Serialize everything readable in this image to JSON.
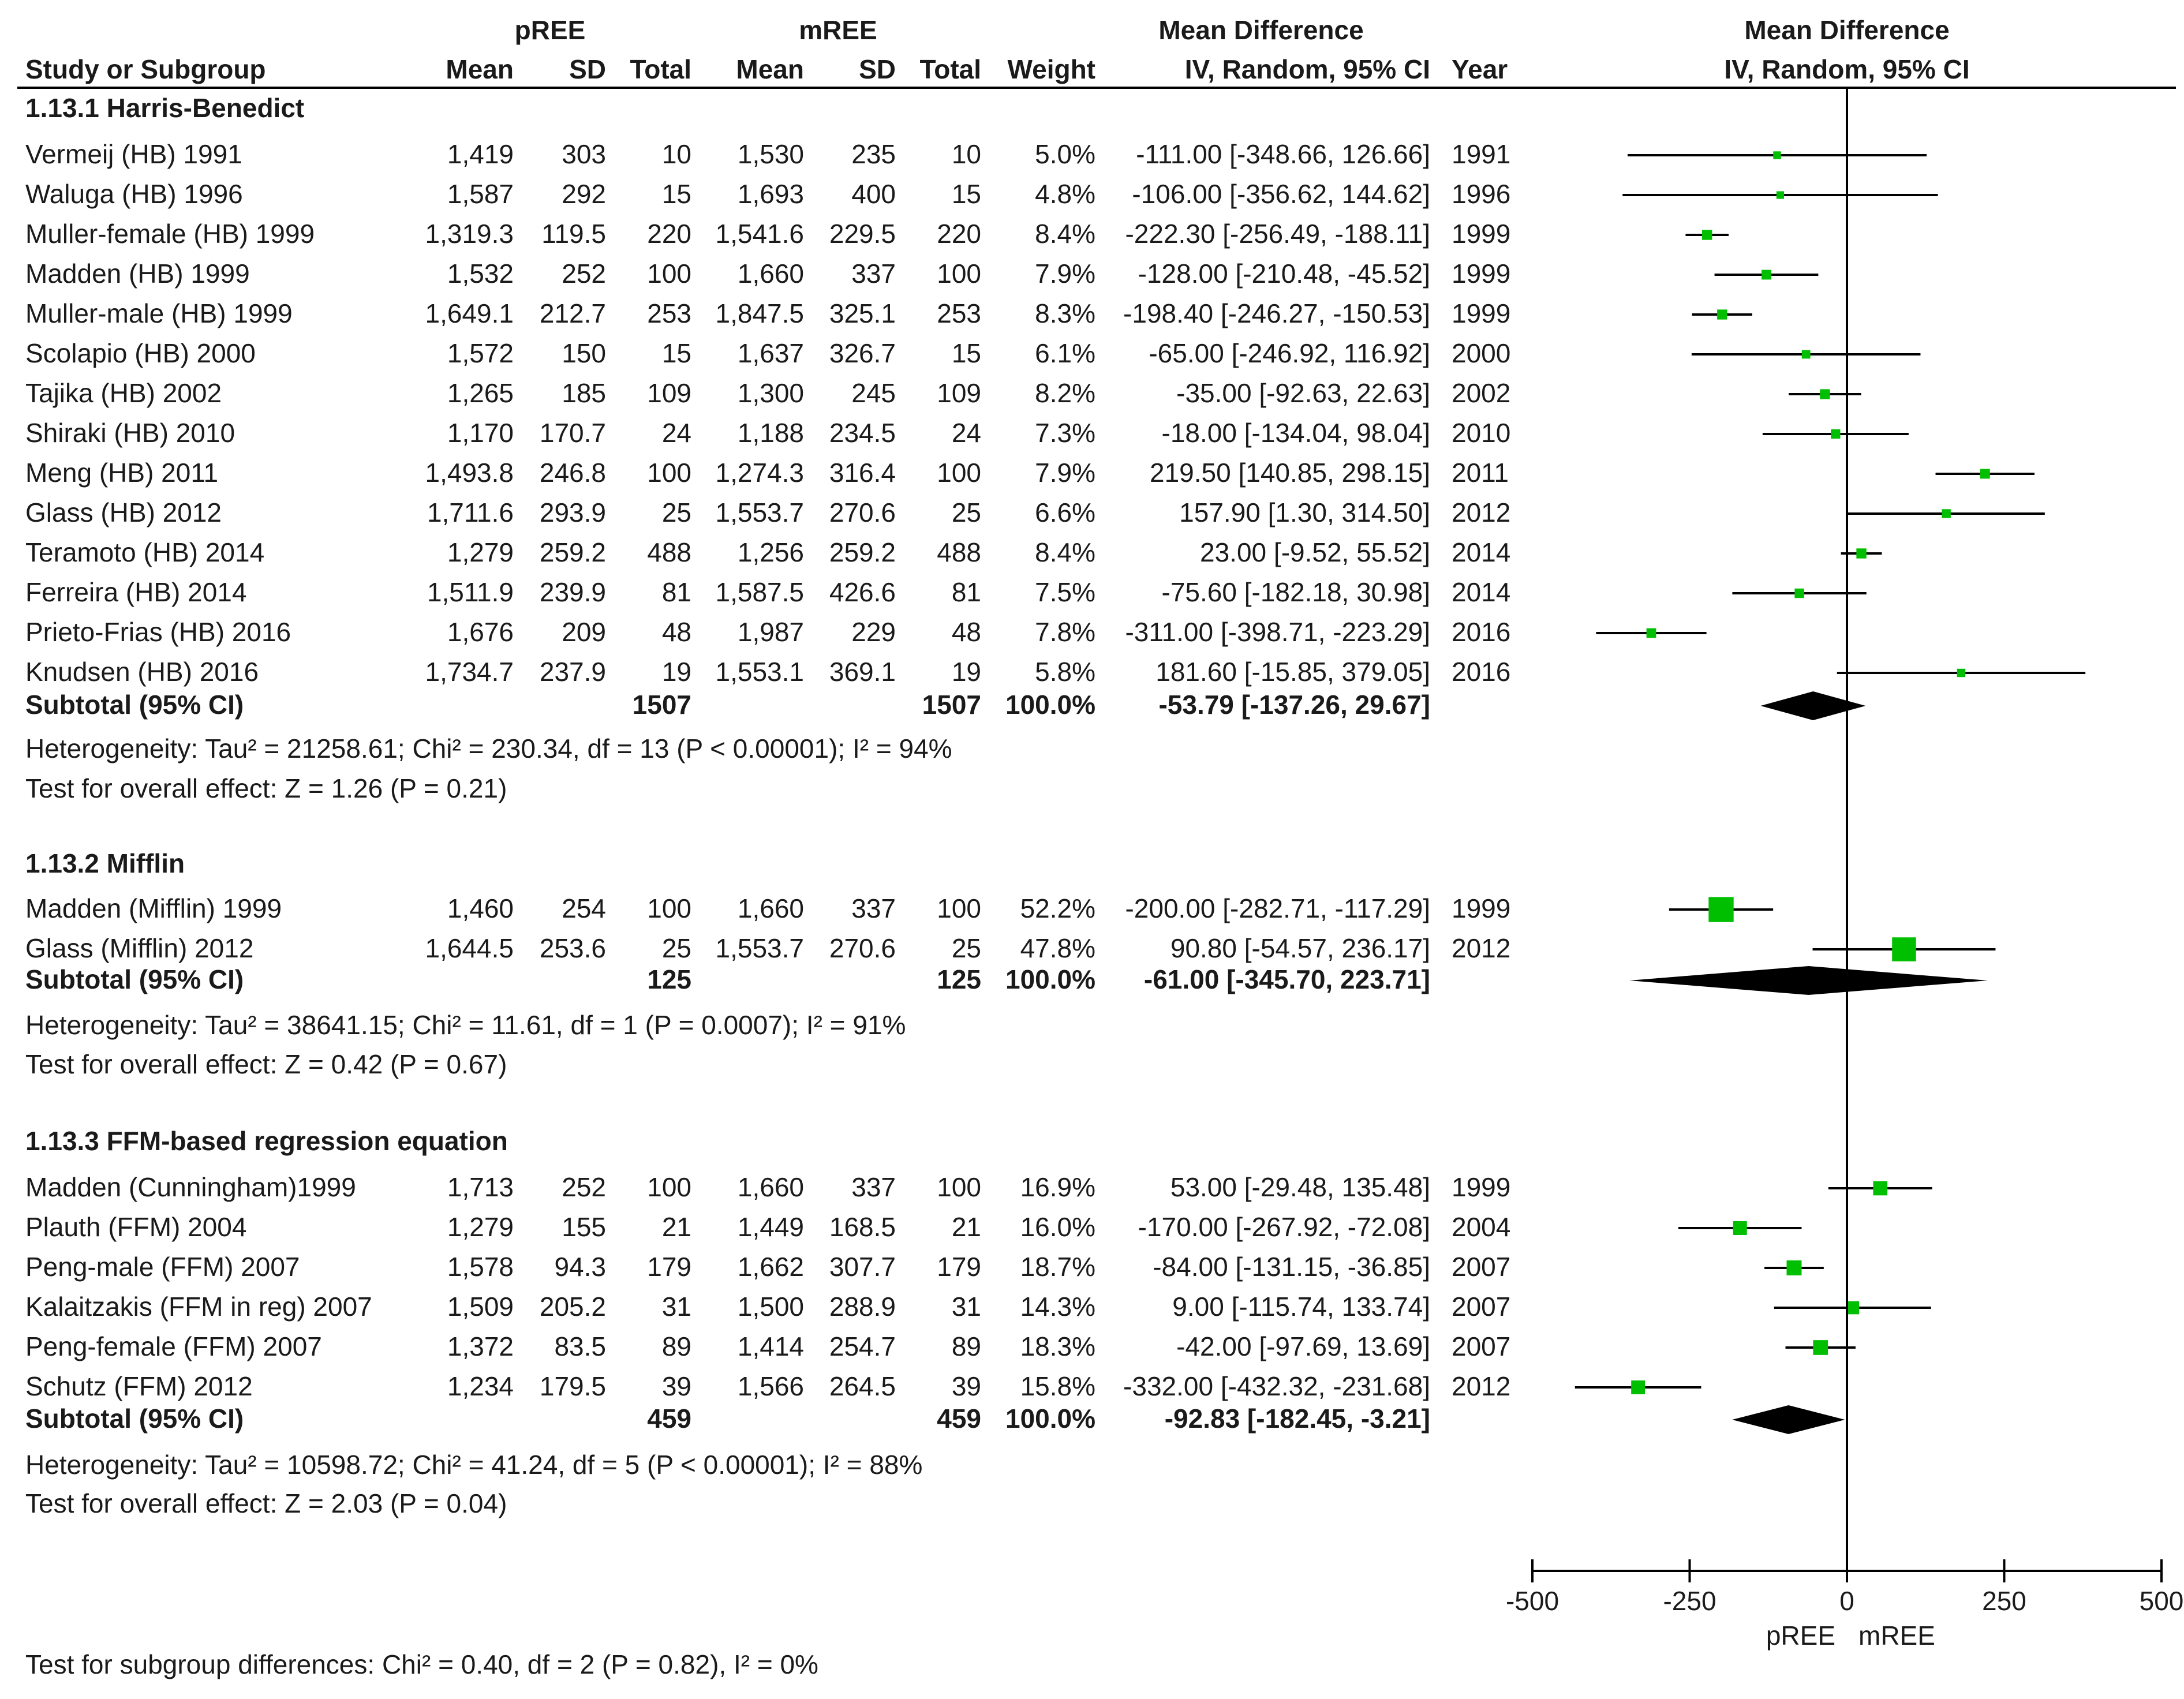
{
  "chart_data": {
    "type": "forest",
    "title": "",
    "headers": {
      "study": "Study or Subgroup",
      "group1": "pREE",
      "group2": "mREE",
      "mean": "Mean",
      "sd": "SD",
      "total": "Total",
      "weight": "Weight",
      "md_top": "Mean Difference",
      "md_sub": "IV, Random, 95% CI",
      "year": "Year",
      "plot_top": "Mean Difference",
      "plot_sub": "IV, Random, 95% CI"
    },
    "axis": {
      "xlim": [
        -500,
        500
      ],
      "ticks": [
        -500,
        -250,
        0,
        250,
        500
      ],
      "tick_labels": [
        "-500",
        "-250",
        "0",
        "250",
        "500"
      ],
      "label_left": "pREE",
      "label_right": "mREE"
    },
    "colors": {
      "marker": "#00bf00",
      "diamond": "#000000",
      "text": "#1a1a1a"
    },
    "subgroups": [
      {
        "title": "1.13.1 Harris-Benedict",
        "studies": [
          {
            "name": "Vermeij (HB) 1991",
            "m1": "1,419",
            "sd1": "303",
            "n1": "10",
            "m2": "1,530",
            "sd2": "235",
            "n2": "10",
            "weight": "5.0%",
            "ci_text": "-111.00 [-348.66, 126.66]",
            "year": "1991",
            "md": -111.0,
            "lo": -348.66,
            "hi": 126.66,
            "w": 5.0
          },
          {
            "name": "Waluga (HB) 1996",
            "m1": "1,587",
            "sd1": "292",
            "n1": "15",
            "m2": "1,693",
            "sd2": "400",
            "n2": "15",
            "weight": "4.8%",
            "ci_text": "-106.00 [-356.62, 144.62]",
            "year": "1996",
            "md": -106.0,
            "lo": -356.62,
            "hi": 144.62,
            "w": 4.8
          },
          {
            "name": "Muller-female (HB) 1999",
            "m1": "1,319.3",
            "sd1": "119.5",
            "n1": "220",
            "m2": "1,541.6",
            "sd2": "229.5",
            "n2": "220",
            "weight": "8.4%",
            "ci_text": "-222.30 [-256.49, -188.11]",
            "year": "1999",
            "md": -222.3,
            "lo": -256.49,
            "hi": -188.11,
            "w": 8.4
          },
          {
            "name": "Madden (HB) 1999",
            "m1": "1,532",
            "sd1": "252",
            "n1": "100",
            "m2": "1,660",
            "sd2": "337",
            "n2": "100",
            "weight": "7.9%",
            "ci_text": "-128.00 [-210.48, -45.52]",
            "year": "1999",
            "md": -128.0,
            "lo": -210.48,
            "hi": -45.52,
            "w": 7.9
          },
          {
            "name": "Muller-male (HB) 1999",
            "m1": "1,649.1",
            "sd1": "212.7",
            "n1": "253",
            "m2": "1,847.5",
            "sd2": "325.1",
            "n2": "253",
            "weight": "8.3%",
            "ci_text": "-198.40 [-246.27, -150.53]",
            "year": "1999",
            "md": -198.4,
            "lo": -246.27,
            "hi": -150.53,
            "w": 8.3
          },
          {
            "name": "Scolapio (HB) 2000",
            "m1": "1,572",
            "sd1": "150",
            "n1": "15",
            "m2": "1,637",
            "sd2": "326.7",
            "n2": "15",
            "weight": "6.1%",
            "ci_text": "-65.00 [-246.92, 116.92]",
            "year": "2000",
            "md": -65.0,
            "lo": -246.92,
            "hi": 116.92,
            "w": 6.1
          },
          {
            "name": "Tajika (HB) 2002",
            "m1": "1,265",
            "sd1": "185",
            "n1": "109",
            "m2": "1,300",
            "sd2": "245",
            "n2": "109",
            "weight": "8.2%",
            "ci_text": "-35.00 [-92.63, 22.63]",
            "year": "2002",
            "md": -35.0,
            "lo": -92.63,
            "hi": 22.63,
            "w": 8.2
          },
          {
            "name": "Shiraki (HB) 2010",
            "m1": "1,170",
            "sd1": "170.7",
            "n1": "24",
            "m2": "1,188",
            "sd2": "234.5",
            "n2": "24",
            "weight": "7.3%",
            "ci_text": "-18.00 [-134.04, 98.04]",
            "year": "2010",
            "md": -18.0,
            "lo": -134.04,
            "hi": 98.04,
            "w": 7.3
          },
          {
            "name": "Meng (HB) 2011",
            "m1": "1,493.8",
            "sd1": "246.8",
            "n1": "100",
            "m2": "1,274.3",
            "sd2": "316.4",
            "n2": "100",
            "weight": "7.9%",
            "ci_text": "219.50 [140.85, 298.15]",
            "year": "2011",
            "md": 219.5,
            "lo": 140.85,
            "hi": 298.15,
            "w": 7.9
          },
          {
            "name": "Glass (HB) 2012",
            "m1": "1,711.6",
            "sd1": "293.9",
            "n1": "25",
            "m2": "1,553.7",
            "sd2": "270.6",
            "n2": "25",
            "weight": "6.6%",
            "ci_text": "157.90 [1.30, 314.50]",
            "year": "2012",
            "md": 157.9,
            "lo": 1.3,
            "hi": 314.5,
            "w": 6.6
          },
          {
            "name": "Teramoto (HB) 2014",
            "m1": "1,279",
            "sd1": "259.2",
            "n1": "488",
            "m2": "1,256",
            "sd2": "259.2",
            "n2": "488",
            "weight": "8.4%",
            "ci_text": "23.00 [-9.52, 55.52]",
            "year": "2014",
            "md": 23.0,
            "lo": -9.52,
            "hi": 55.52,
            "w": 8.4
          },
          {
            "name": "Ferreira (HB) 2014",
            "m1": "1,511.9",
            "sd1": "239.9",
            "n1": "81",
            "m2": "1,587.5",
            "sd2": "426.6",
            "n2": "81",
            "weight": "7.5%",
            "ci_text": "-75.60 [-182.18, 30.98]",
            "year": "2014",
            "md": -75.6,
            "lo": -182.18,
            "hi": 30.98,
            "w": 7.5
          },
          {
            "name": "Prieto-Frias (HB) 2016",
            "m1": "1,676",
            "sd1": "209",
            "n1": "48",
            "m2": "1,987",
            "sd2": "229",
            "n2": "48",
            "weight": "7.8%",
            "ci_text": "-311.00 [-398.71, -223.29]",
            "year": "2016",
            "md": -311.0,
            "lo": -398.71,
            "hi": -223.29,
            "w": 7.8
          },
          {
            "name": "Knudsen (HB) 2016",
            "m1": "1,734.7",
            "sd1": "237.9",
            "n1": "19",
            "m2": "1,553.1",
            "sd2": "369.1",
            "n2": "19",
            "weight": "5.8%",
            "ci_text": "181.60 [-15.85, 379.05]",
            "year": "2016",
            "md": 181.6,
            "lo": -15.85,
            "hi": 379.05,
            "w": 5.8
          }
        ],
        "subtotal": {
          "label": "Subtotal (95% CI)",
          "n1": "1507",
          "n2": "1507",
          "weight": "100.0%",
          "ci_text": "-53.79 [-137.26, 29.67]",
          "md": -53.79,
          "lo": -137.26,
          "hi": 29.67
        },
        "heterogeneity": "Heterogeneity: Tau² = 21258.61; Chi² = 230.34, df = 13 (P < 0.00001); I² = 94%",
        "overall": "Test for overall effect: Z = 1.26 (P = 0.21)"
      },
      {
        "title": "1.13.2 Mifflin",
        "studies": [
          {
            "name": "Madden (Mifflin) 1999",
            "m1": "1,460",
            "sd1": "254",
            "n1": "100",
            "m2": "1,660",
            "sd2": "337",
            "n2": "100",
            "weight": "52.2%",
            "ci_text": "-200.00 [-282.71, -117.29]",
            "year": "1999",
            "md": -200.0,
            "lo": -282.71,
            "hi": -117.29,
            "w": 52.2
          },
          {
            "name": "Glass (Mifflin) 2012",
            "m1": "1,644.5",
            "sd1": "253.6",
            "n1": "25",
            "m2": "1,553.7",
            "sd2": "270.6",
            "n2": "25",
            "weight": "47.8%",
            "ci_text": "90.80 [-54.57, 236.17]",
            "year": "2012",
            "md": 90.8,
            "lo": -54.57,
            "hi": 236.17,
            "w": 47.8
          }
        ],
        "subtotal": {
          "label": "Subtotal (95% CI)",
          "n1": "125",
          "n2": "125",
          "weight": "100.0%",
          "ci_text": "-61.00 [-345.70, 223.71]",
          "md": -61.0,
          "lo": -345.7,
          "hi": 223.71
        },
        "heterogeneity": "Heterogeneity: Tau² = 38641.15; Chi² = 11.61, df = 1 (P = 0.0007); I² = 91%",
        "overall": "Test for overall effect: Z = 0.42 (P = 0.67)"
      },
      {
        "title": "1.13.3 FFM-based regression equation",
        "studies": [
          {
            "name": "Madden (Cunningham)1999",
            "m1": "1,713",
            "sd1": "252",
            "n1": "100",
            "m2": "1,660",
            "sd2": "337",
            "n2": "100",
            "weight": "16.9%",
            "ci_text": "53.00 [-29.48, 135.48]",
            "year": "1999",
            "md": 53.0,
            "lo": -29.48,
            "hi": 135.48,
            "w": 16.9
          },
          {
            "name": "Plauth (FFM) 2004",
            "m1": "1,279",
            "sd1": "155",
            "n1": "21",
            "m2": "1,449",
            "sd2": "168.5",
            "n2": "21",
            "weight": "16.0%",
            "ci_text": "-170.00 [-267.92, -72.08]",
            "year": "2004",
            "md": -170.0,
            "lo": -267.92,
            "hi": -72.08,
            "w": 16.0
          },
          {
            "name": "Peng-male (FFM) 2007",
            "m1": "1,578",
            "sd1": "94.3",
            "n1": "179",
            "m2": "1,662",
            "sd2": "307.7",
            "n2": "179",
            "weight": "18.7%",
            "ci_text": "-84.00 [-131.15, -36.85]",
            "year": "2007",
            "md": -84.0,
            "lo": -131.15,
            "hi": -36.85,
            "w": 18.7
          },
          {
            "name": "Kalaitzakis (FFM in reg) 2007",
            "m1": "1,509",
            "sd1": "205.2",
            "n1": "31",
            "m2": "1,500",
            "sd2": "288.9",
            "n2": "31",
            "weight": "14.3%",
            "ci_text": "9.00 [-115.74, 133.74]",
            "year": "2007",
            "md": 9.0,
            "lo": -115.74,
            "hi": 133.74,
            "w": 14.3
          },
          {
            "name": "Peng-female (FFM) 2007",
            "m1": "1,372",
            "sd1": "83.5",
            "n1": "89",
            "m2": "1,414",
            "sd2": "254.7",
            "n2": "89",
            "weight": "18.3%",
            "ci_text": "-42.00 [-97.69, 13.69]",
            "year": "2007",
            "md": -42.0,
            "lo": -97.69,
            "hi": 13.69,
            "w": 18.3
          },
          {
            "name": "Schutz (FFM) 2012",
            "m1": "1,234",
            "sd1": "179.5",
            "n1": "39",
            "m2": "1,566",
            "sd2": "264.5",
            "n2": "39",
            "weight": "15.8%",
            "ci_text": "-332.00 [-432.32, -231.68]",
            "year": "2012",
            "md": -332.0,
            "lo": -432.32,
            "hi": -231.68,
            "w": 15.8
          }
        ],
        "subtotal": {
          "label": "Subtotal (95% CI)",
          "n1": "459",
          "n2": "459",
          "weight": "100.0%",
          "ci_text": "-92.83 [-182.45, -3.21]",
          "md": -92.83,
          "lo": -182.45,
          "hi": -3.21
        },
        "heterogeneity": "Heterogeneity: Tau² = 10598.72; Chi² = 41.24, df = 5 (P < 0.00001); I² = 88%",
        "overall": "Test for overall effect: Z = 2.03 (P = 0.04)"
      }
    ],
    "subgroup_differences": "Test for subgroup differences: Chi² = 0.40, df = 2 (P = 0.82), I² = 0%"
  }
}
